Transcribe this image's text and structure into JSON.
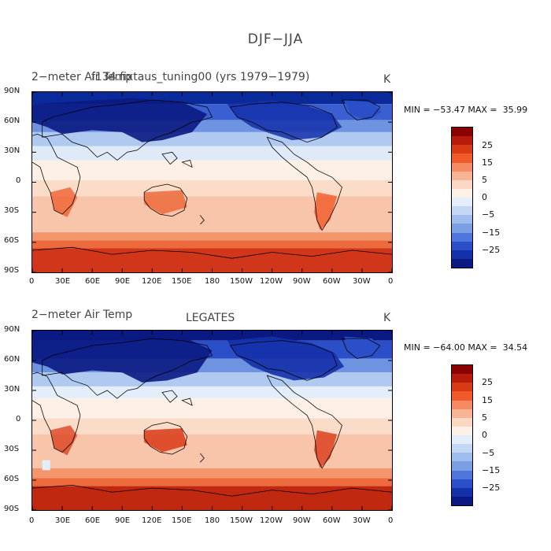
{
  "title": "DJF−JJA",
  "panels": [
    {
      "variable": "2−meter Air Temp",
      "case": "f134.fixtaus_tuning00 (yrs 1979−1979)",
      "unit": "K",
      "min_max": "MIN = −53.47 MAX =  35.99"
    },
    {
      "variable": "2−meter Air Temp",
      "case": "LEGATES",
      "unit": "K",
      "min_max": "MIN = −64.00 MAX =  34.54"
    }
  ],
  "lat_labels": [
    "90N",
    "60N",
    "30N",
    "0",
    "30S",
    "60S",
    "90S"
  ],
  "lon_labels": [
    "0",
    "30E",
    "60E",
    "90E",
    "120E",
    "150E",
    "180",
    "150W",
    "120W",
    "90W",
    "60W",
    "30W",
    "0"
  ],
  "colorbar": {
    "labels": [
      "25",
      "15",
      "5",
      "0",
      "−5",
      "−15",
      "−25"
    ],
    "colors": [
      "#8b0000",
      "#b81a0c",
      "#d93a16",
      "#f05a28",
      "#f68a60",
      "#f9b494",
      "#fcd8c4",
      "#fdf0e6",
      "#e3eefa",
      "#c2d8f4",
      "#9ebdee",
      "#7a9fe4",
      "#4f76dc",
      "#2a4fc9",
      "#1430aa",
      "#0a1a82"
    ]
  }
}
